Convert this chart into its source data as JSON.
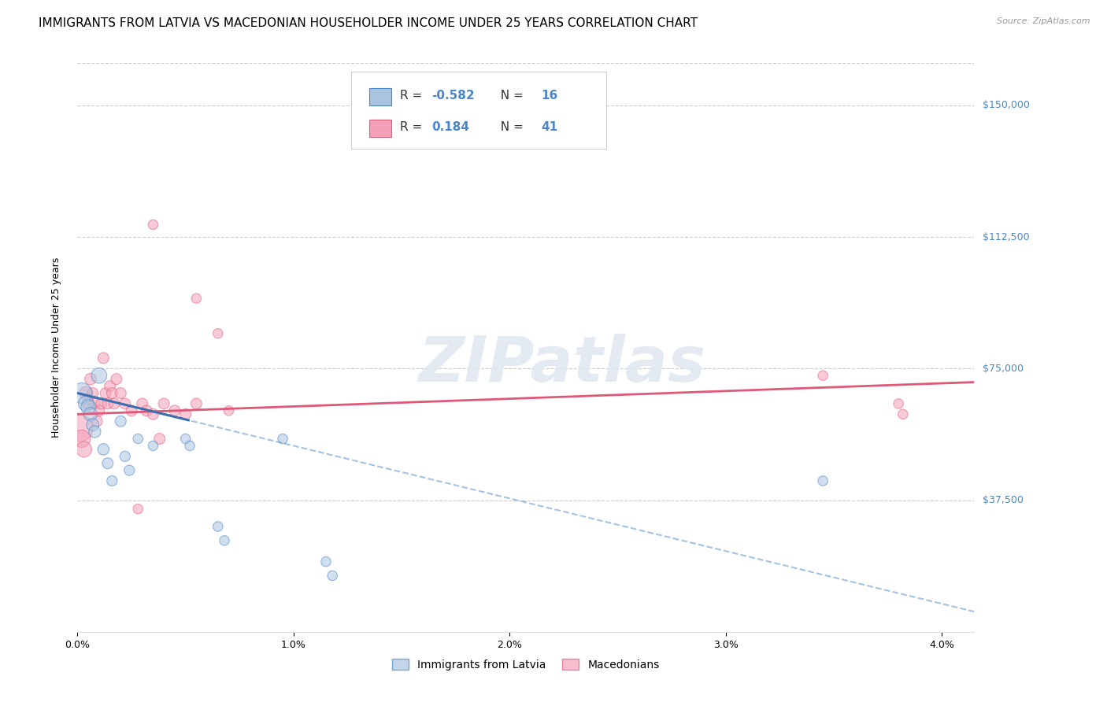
{
  "title": "IMMIGRANTS FROM LATVIA VS MACEDONIAN HOUSEHOLDER INCOME UNDER 25 YEARS CORRELATION CHART",
  "source": "Source: ZipAtlas.com",
  "ylabel": "Householder Income Under 25 years",
  "xlabel_ticks": [
    "0.0%",
    "1.0%",
    "2.0%",
    "3.0%",
    "4.0%"
  ],
  "xlabel_vals": [
    0.0,
    1.0,
    2.0,
    3.0,
    4.0
  ],
  "ytick_labels": [
    "$37,500",
    "$75,000",
    "$112,500",
    "$150,000"
  ],
  "ytick_vals": [
    37500,
    75000,
    112500,
    150000
  ],
  "blue_color": "#aac4e0",
  "blue_edge_color": "#4a86c8",
  "pink_color": "#f4a0b8",
  "pink_edge_color": "#e0607a",
  "blue_line_color": "#3a6fb0",
  "pink_line_color": "#e05878",
  "background_color": "#ffffff",
  "watermark": "ZIPatlas",
  "blue_points": [
    [
      0.02,
      68000
    ],
    [
      0.04,
      65000
    ],
    [
      0.05,
      64000
    ],
    [
      0.06,
      62000
    ],
    [
      0.07,
      59000
    ],
    [
      0.08,
      57000
    ],
    [
      0.1,
      73000
    ],
    [
      0.12,
      52000
    ],
    [
      0.14,
      48000
    ],
    [
      0.16,
      43000
    ],
    [
      0.2,
      60000
    ],
    [
      0.22,
      50000
    ],
    [
      0.24,
      46000
    ],
    [
      0.28,
      55000
    ],
    [
      0.35,
      53000
    ],
    [
      0.5,
      55000
    ],
    [
      0.52,
      53000
    ],
    [
      0.65,
      30000
    ],
    [
      0.68,
      26000
    ],
    [
      0.95,
      55000
    ],
    [
      1.15,
      20000
    ],
    [
      1.18,
      16000
    ],
    [
      3.45,
      43000
    ]
  ],
  "blue_point_sizes": [
    350,
    200,
    180,
    150,
    130,
    120,
    200,
    110,
    100,
    90,
    100,
    90,
    90,
    80,
    80,
    80,
    80,
    80,
    80,
    80,
    80,
    80,
    80
  ],
  "pink_points": [
    [
      0.01,
      58000
    ],
    [
      0.02,
      55000
    ],
    [
      0.03,
      52000
    ],
    [
      0.04,
      68000
    ],
    [
      0.05,
      65000
    ],
    [
      0.06,
      72000
    ],
    [
      0.07,
      68000
    ],
    [
      0.08,
      65000
    ],
    [
      0.09,
      60000
    ],
    [
      0.1,
      63000
    ],
    [
      0.11,
      65000
    ],
    [
      0.12,
      78000
    ],
    [
      0.13,
      68000
    ],
    [
      0.14,
      65000
    ],
    [
      0.15,
      70000
    ],
    [
      0.16,
      68000
    ],
    [
      0.17,
      65000
    ],
    [
      0.18,
      72000
    ],
    [
      0.2,
      68000
    ],
    [
      0.22,
      65000
    ],
    [
      0.25,
      63000
    ],
    [
      0.28,
      35000
    ],
    [
      0.3,
      65000
    ],
    [
      0.32,
      63000
    ],
    [
      0.35,
      62000
    ],
    [
      0.38,
      55000
    ],
    [
      0.4,
      65000
    ],
    [
      0.45,
      63000
    ],
    [
      0.5,
      62000
    ],
    [
      0.55,
      65000
    ],
    [
      0.35,
      116000
    ],
    [
      0.55,
      95000
    ],
    [
      0.65,
      85000
    ],
    [
      0.7,
      63000
    ],
    [
      3.45,
      73000
    ],
    [
      3.8,
      65000
    ],
    [
      3.82,
      62000
    ]
  ],
  "pink_point_sizes": [
    600,
    250,
    200,
    150,
    120,
    110,
    100,
    100,
    100,
    100,
    100,
    100,
    100,
    100,
    100,
    100,
    100,
    100,
    100,
    100,
    100,
    80,
    100,
    100,
    100,
    100,
    100,
    100,
    100,
    100,
    80,
    80,
    80,
    80,
    80,
    80,
    80
  ],
  "xlim": [
    0.0,
    4.15
  ],
  "ylim": [
    0,
    162000
  ],
  "blue_regression": {
    "slope": -15000,
    "intercept": 68000
  },
  "pink_regression": {
    "slope": 2200,
    "intercept": 62000
  },
  "blue_solid_end": 0.52,
  "title_fontsize": 11,
  "source_fontsize": 8,
  "axis_label_fontsize": 9,
  "tick_fontsize": 9,
  "ytick_color": "#4a86c8",
  "legend_text_color": "#333333",
  "legend_num_color": "#4a86c8"
}
